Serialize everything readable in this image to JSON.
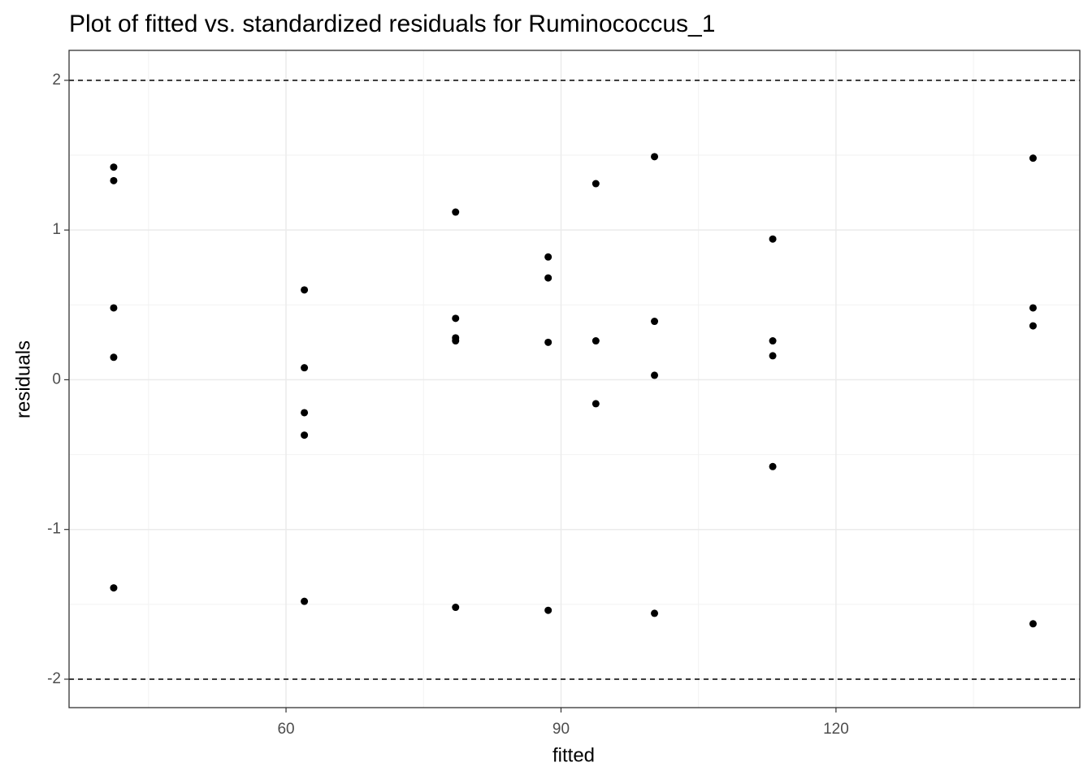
{
  "chart_data": {
    "type": "scatter",
    "title": "Plot of fitted vs. standardized residuals for Ruminococcus_1",
    "x_label": "fitted",
    "y_label": "residuals",
    "x": [
      41.2,
      41.2,
      41.2,
      41.2,
      41.2,
      62.0,
      62.0,
      62.0,
      62.0,
      62.0,
      78.5,
      78.5,
      78.5,
      78.5,
      78.5,
      88.6,
      88.6,
      88.6,
      88.6,
      93.8,
      93.8,
      93.8,
      100.2,
      100.2,
      100.2,
      100.2,
      113.1,
      113.1,
      113.1,
      113.1,
      141.5,
      141.5,
      141.5,
      141.5
    ],
    "values": [
      1.42,
      1.33,
      0.48,
      0.15,
      -1.39,
      0.6,
      0.08,
      -0.22,
      -0.37,
      -1.48,
      1.12,
      0.41,
      0.28,
      0.26,
      -1.52,
      0.82,
      0.68,
      0.25,
      -1.54,
      1.31,
      0.26,
      -0.16,
      1.49,
      0.39,
      0.03,
      -1.56,
      0.94,
      0.26,
      0.16,
      -0.58,
      1.48,
      0.48,
      0.36,
      -1.63
    ],
    "color": "#000000",
    "xlim": [
      36.33,
      146.6
    ],
    "ylim": [
      -2.19,
      2.2
    ],
    "xticks": [
      60,
      90,
      120
    ],
    "yticks": [
      -2,
      -1,
      0,
      1,
      2
    ],
    "x_minor_grid": [
      45,
      75,
      105,
      135
    ],
    "y_minor_grid": [
      -1.5,
      -0.5,
      0.5,
      1.5
    ],
    "hlines": [
      2,
      -2
    ],
    "grid": true
  }
}
